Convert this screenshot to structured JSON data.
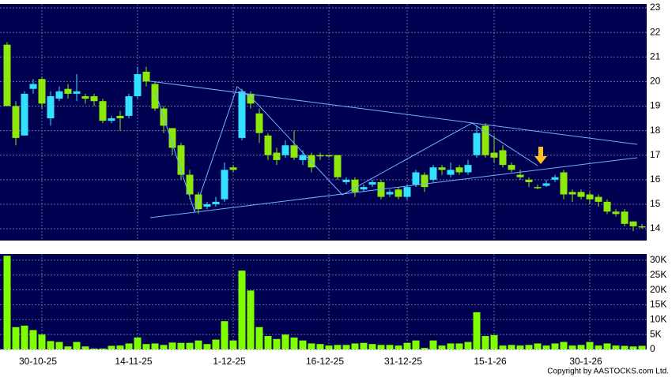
{
  "chart_data": [
    {
      "type": "candlestick",
      "categories": [
        null,
        null,
        null,
        null,
        "30-10-25",
        null,
        null,
        null,
        null,
        null,
        null,
        null,
        null,
        null,
        null,
        "14-11-25",
        null,
        null,
        null,
        null,
        null,
        null,
        null,
        null,
        null,
        null,
        "1-12-25",
        null,
        null,
        null,
        null,
        null,
        null,
        null,
        null,
        null,
        null,
        "16-12-25",
        null,
        null,
        null,
        null,
        null,
        null,
        null,
        null,
        "31-12-25",
        null,
        null,
        null,
        null,
        null,
        null,
        null,
        null,
        null,
        "15-1-26",
        null,
        null,
        null,
        null,
        null,
        null,
        null,
        null,
        null,
        null,
        "30-1-26",
        null,
        null,
        null,
        null,
        null,
        null
      ],
      "open": [
        21.5,
        19,
        17.8,
        19.7,
        20.1,
        18.5,
        19.3,
        19.7,
        19.5,
        19.4,
        19.4,
        19.2,
        18.4,
        18.6,
        18.6,
        19.4,
        20.4,
        19.9,
        18.9,
        18.1,
        17.4,
        16.2,
        15.4,
        14.9,
        15,
        15.2,
        16.5,
        17.7,
        19.5,
        18.7,
        17.8,
        17.1,
        17,
        17.4,
        16.8,
        17,
        17,
        17,
        17,
        15.9,
        16,
        15.6,
        15.8,
        15.9,
        15.4,
        15.6,
        15.3,
        15.8,
        16.2,
        16,
        16.5,
        16.2,
        16.5,
        16.3,
        17,
        18.2,
        17.1,
        17.2,
        16.6,
        16.2,
        16,
        15.7,
        15.75,
        16,
        16.3,
        15.5,
        15.5,
        15.4,
        15.3,
        15.1,
        14.7,
        14.7,
        14.3,
        14.1
      ],
      "high": [
        21.6,
        19.2,
        19.6,
        20.1,
        20.2,
        19.6,
        19.8,
        19.9,
        20.3,
        19.5,
        19.5,
        19.3,
        18.6,
        18.8,
        19.5,
        20.6,
        20.6,
        20,
        19,
        18.1,
        17.5,
        16.4,
        15.5,
        15.1,
        15.3,
        16.7,
        16.6,
        19.7,
        19.6,
        18.9,
        17.9,
        17.3,
        17.6,
        18,
        17.2,
        17.1,
        17.1,
        17,
        17,
        16.1,
        16.1,
        15.8,
        16,
        16,
        15.6,
        15.7,
        15.8,
        16.4,
        16.3,
        16.6,
        16.6,
        16.7,
        16.6,
        16.8,
        18.2,
        18.3,
        17.8,
        17.4,
        16.7,
        16.4,
        16.1,
        15.8,
        16,
        16.2,
        16.4,
        15.6,
        15.6,
        15.5,
        15.4,
        15.2,
        14.8,
        14.8,
        14.3,
        14.2
      ],
      "low": [
        19,
        17.4,
        17.8,
        19.5,
        18.9,
        18.2,
        19.2,
        19.3,
        19.2,
        19.1,
        19,
        18.3,
        18.3,
        18,
        18.5,
        19.3,
        19.8,
        18.8,
        17.9,
        17,
        16,
        15.2,
        14.6,
        14.8,
        14.9,
        15.1,
        16.3,
        17.6,
        18.9,
        17.5,
        16.8,
        16.6,
        16.9,
        16.8,
        16.6,
        16.3,
        16.8,
        16.9,
        16,
        15.8,
        15.3,
        15.5,
        15.7,
        15.2,
        15.3,
        15.2,
        15.2,
        15.7,
        15.5,
        15.9,
        16.2,
        16.1,
        16.2,
        16.2,
        16.9,
        16.9,
        16.7,
        16.5,
        16.3,
        16,
        15.7,
        15.6,
        15.7,
        15.9,
        15.2,
        15.1,
        15.2,
        15,
        14.9,
        14.6,
        14.5,
        14.1,
        13.9,
        14
      ],
      "close": [
        19,
        17.7,
        19.5,
        19.9,
        19.1,
        19.4,
        19.6,
        19.5,
        19.6,
        19.3,
        19.2,
        18.4,
        18.5,
        18.5,
        19.4,
        20.3,
        20,
        18.9,
        18.2,
        17.3,
        16.2,
        15.4,
        14.8,
        15,
        15.1,
        16.4,
        16.4,
        19.6,
        19.1,
        17.9,
        17,
        16.8,
        17.4,
        16.9,
        17,
        16.5,
        16.95,
        16.95,
        16.1,
        16,
        15.5,
        15.7,
        15.9,
        15.3,
        15.5,
        15.3,
        15.7,
        16.3,
        15.7,
        16.5,
        16.4,
        16.4,
        16.3,
        16.6,
        17.9,
        17,
        16.9,
        16.6,
        16.4,
        16.1,
        15.9,
        15.7,
        15.85,
        16.1,
        15.4,
        15.4,
        15.3,
        15.2,
        15.1,
        14.7,
        14.6,
        14.2,
        14.1,
        14.1
      ],
      "up_color": "#33e0ff",
      "down_color": "#8ee80a",
      "ylim": [
        13.52,
        23.16
      ],
      "yticks": [
        14,
        15,
        16,
        17,
        18,
        19,
        20,
        21,
        22,
        23
      ],
      "grid": true
    },
    {
      "type": "bar",
      "values": [
        31500,
        7500,
        8000,
        6500,
        5000,
        2800,
        2500,
        1000,
        2500,
        1000,
        300,
        300,
        1200,
        1300,
        2000,
        4000,
        1800,
        2000,
        1500,
        2300,
        2200,
        2200,
        3000,
        1800,
        3300,
        9500,
        3000,
        26500,
        19800,
        7500,
        4500,
        3500,
        5000,
        4000,
        3000,
        2000,
        1800,
        1300,
        1500,
        1500,
        2000,
        2200,
        1800,
        1500,
        1500,
        1300,
        2200,
        3000,
        500,
        3000,
        1300,
        2000,
        2000,
        2500,
        12500,
        4500,
        4800,
        1300,
        1500,
        1300,
        1500,
        2000,
        1300,
        2000,
        2500,
        1300,
        1500,
        2500,
        1300,
        2000,
        1300,
        1200,
        1000,
        1200
      ],
      "color": "#7fff00",
      "ylim": [
        0,
        32100
      ],
      "yticks": [
        {
          "value": 0,
          "label": "0"
        },
        {
          "value": 5000,
          "label": "5K"
        },
        {
          "value": 10000,
          "label": "10K"
        },
        {
          "value": 15000,
          "label": "15K"
        },
        {
          "value": 20000,
          "label": "20K"
        },
        {
          "value": 25000,
          "label": "25K"
        },
        {
          "value": 30000,
          "label": "30K"
        }
      ],
      "grid": true
    }
  ],
  "footer": "Copyright by AASTOCKS.com Ltd."
}
